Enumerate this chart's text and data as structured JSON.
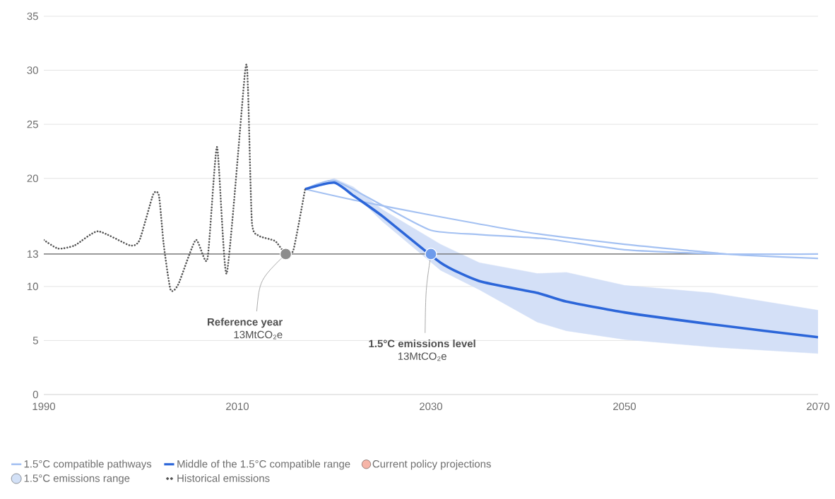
{
  "chart_data": {
    "type": "line",
    "xlim": [
      1990,
      2070
    ],
    "xticks": [
      1990,
      2010,
      2030,
      2050,
      2070
    ],
    "ylim": [
      0,
      35
    ],
    "yticks": [
      0,
      5,
      10,
      13,
      20,
      25,
      30,
      35
    ],
    "grid": "y",
    "legend": "bottom",
    "marker": "none",
    "ref_lines": [
      {
        "axis": "y",
        "value": 13,
        "color": "#666666"
      }
    ],
    "annotations": [
      {
        "text": "**Reference year** 13MtCO₂e",
        "x": 2015,
        "y": 13
      },
      {
        "text": "**1.5°C emissions level** 13MtCO₂e",
        "x": 2030,
        "y": 13
      }
    ],
    "series": [
      {
        "name": "1.5°C compatible pathways",
        "color": "#a4c1f2",
        "x": [
          2017,
          2022,
          2030,
          2040,
          2050,
          2057,
          2062,
          2070
        ],
        "values": [
          19.0,
          18.0,
          16.6,
          15.0,
          13.9,
          13.3,
          12.9,
          12.6
        ]
      },
      {
        "color": "#a4c1f2",
        "x": [
          2017,
          2020,
          2025,
          2030,
          2035,
          2042,
          2050,
          2060,
          2070
        ],
        "values": [
          19.0,
          19.8,
          17.5,
          15.2,
          14.8,
          14.4,
          13.4,
          13.0,
          13.0
        ]
      },
      {
        "name": "Middle of the 1.5°C compatible range",
        "color": "#2c66d9",
        "x": [
          2017,
          2020,
          2022,
          2025,
          2031,
          2035,
          2041,
          2044,
          2050,
          2059,
          2070
        ],
        "values": [
          19.0,
          19.6,
          18.4,
          16.5,
          12.2,
          10.5,
          9.4,
          8.6,
          7.6,
          6.5,
          5.3
        ],
        "lower": [
          19.0,
          19.6,
          18.6,
          16.0,
          11.5,
          9.7,
          6.7,
          5.9,
          5.1,
          4.4,
          3.8
        ],
        "upper": [
          19.0,
          20.0,
          19.2,
          17.1,
          13.9,
          12.2,
          11.2,
          11.3,
          10.1,
          9.4,
          7.8
        ]
      },
      {
        "name": "Current policy projections",
        "color": "#f6b5a8",
        "type": "scatter"
      },
      {
        "name": "1.5°C emissions range",
        "color": "#d3e1f7",
        "type": "area"
      },
      {
        "name": "Historical emissions",
        "color": "#555555",
        "line_style": "dotted",
        "x": [
          1990,
          1991.5,
          1993.2,
          1995.6,
          1998.9,
          1999.9,
          2001.3,
          2001.9,
          2002.4,
          2003.1,
          2003.9,
          2005.7,
          2006.9,
          2007.9,
          2008.9,
          2010.8,
          2011.1,
          2011.5,
          2012.2,
          2013.9,
          2015,
          2015.8,
          2017
        ],
        "values": [
          14.3,
          13.5,
          13.8,
          15.1,
          13.8,
          14.3,
          18.5,
          18.4,
          13.8,
          9.7,
          10.2,
          14.3,
          12.5,
          22.9,
          11.2,
          29.9,
          28.2,
          16.0,
          14.7,
          14.2,
          13.0,
          13.4,
          19.0
        ]
      }
    ]
  }
}
